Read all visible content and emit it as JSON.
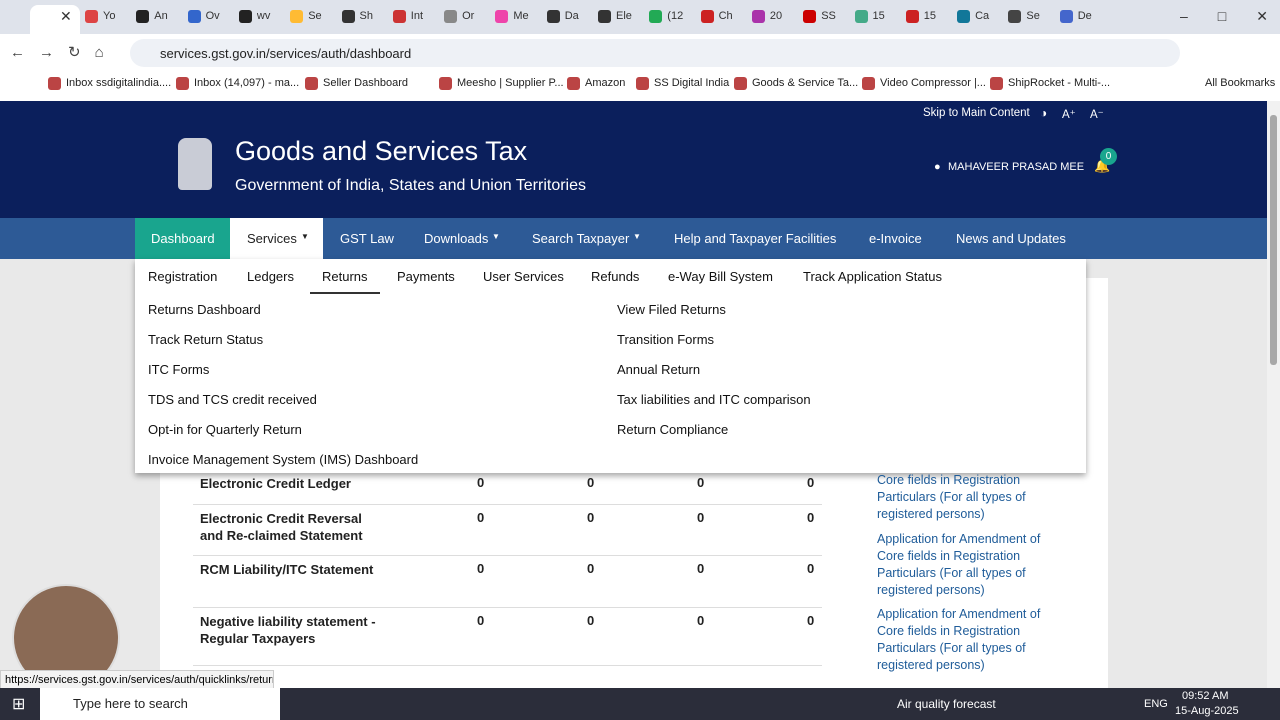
{
  "browser": {
    "tabs": [
      "Yo",
      "An",
      "Ov",
      "wv",
      "Se",
      "Sh",
      "Int",
      "Or",
      "Me",
      "Da",
      "Ele",
      "(12",
      "Ch",
      "20",
      "SS",
      "15",
      "15",
      "Ca",
      "Se",
      "De"
    ],
    "url": "services.gst.gov.in/services/auth/dashboard",
    "bookmarks": [
      "Inbox ssdigitalindia....",
      "Inbox (14,097) - ma...",
      "Seller Dashboard",
      "Meesho | Supplier P...",
      "Amazon",
      "SS Digital India",
      "Goods & Service Ta...",
      "Video Compressor |...",
      "ShipRocket - Multi-..."
    ],
    "all_bookmarks": "All Bookmarks",
    "status_url": "https://services.gst.gov.in/services/auth/quicklinks/returns"
  },
  "header": {
    "skip": "Skip to Main Content",
    "font_up": "A⁺",
    "font_down": "A⁻",
    "title": "Goods and Services Tax",
    "subtitle": "Government of India, States and Union Territories",
    "user": "MAHAVEER PRASAD MEE",
    "notifications": 0
  },
  "nav": [
    "Dashboard",
    "Services",
    "GST Law",
    "Downloads",
    "Search Taxpayer",
    "Help and Taxpayer Facilities",
    "e-Invoice",
    "News and Updates"
  ],
  "subnav": [
    "Registration",
    "Ledgers",
    "Returns",
    "Payments",
    "User Services",
    "Refunds",
    "e-Way Bill System",
    "Track Application Status"
  ],
  "menu": {
    "left": [
      "Returns Dashboard",
      "Track Return Status",
      "ITC Forms",
      "TDS and TCS credit received",
      "Opt-in for Quarterly Return",
      "Invoice Management System (IMS) Dashboard"
    ],
    "right": [
      "View Filed Returns",
      "Transition Forms",
      "Annual Return",
      "Tax liabilities and ITC comparison",
      "Return Compliance"
    ]
  },
  "table": {
    "rows": [
      [
        "Electronic Credit Ledger",
        0,
        0,
        0,
        0
      ],
      [
        "Electronic Credit Reversal and Re-claimed Statement",
        0,
        0,
        0,
        0
      ],
      [
        "RCM Liability/ITC Statement",
        0,
        0,
        0,
        0
      ],
      [
        "Negative liability statement - Regular Taxpayers",
        0,
        0,
        0,
        0
      ]
    ]
  },
  "links": [
    "Core fields in Registration Particulars (For all types of registered persons)",
    "Application for Amendment of Core fields in Registration Particulars (For all types of registered persons)",
    "Application for Amendment of Core fields in Registration Particulars (For all types of registered persons)"
  ],
  "taskbar": {
    "search": "Type here to search",
    "weather": "Air quality forecast",
    "lang": "ENG",
    "time": "09:52 AM",
    "date": "15-Aug-2025"
  }
}
